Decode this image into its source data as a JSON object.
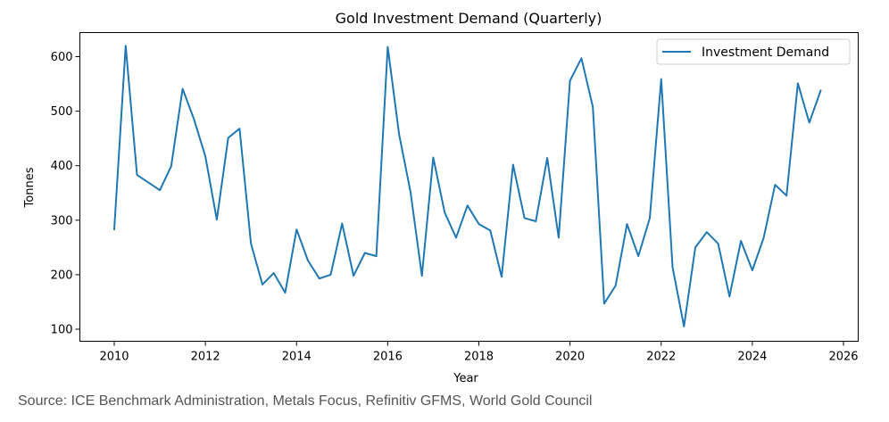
{
  "chart_data": {
    "type": "line",
    "title": "Gold Investment Demand (Quarterly)",
    "xlabel": "Year",
    "ylabel": "Tonnes",
    "xlim": [
      2009.3,
      2026.3
    ],
    "ylim": [
      77,
      645
    ],
    "xticks": [
      2010,
      2012,
      2014,
      2016,
      2018,
      2020,
      2022,
      2024,
      2026
    ],
    "yticks": [
      100,
      200,
      300,
      400,
      500,
      600
    ],
    "grid": false,
    "legend": {
      "position": "top-right",
      "entries": [
        "Investment Demand"
      ]
    },
    "series": [
      {
        "name": "Investment Demand",
        "color": "#1f77b4",
        "x": [
          2010.0,
          2010.25,
          2010.5,
          2010.75,
          2011.0,
          2011.25,
          2011.5,
          2011.75,
          2012.0,
          2012.25,
          2012.5,
          2012.75,
          2013.0,
          2013.25,
          2013.5,
          2013.75,
          2014.0,
          2014.25,
          2014.5,
          2014.75,
          2015.0,
          2015.25,
          2015.5,
          2015.75,
          2016.0,
          2016.25,
          2016.5,
          2016.75,
          2017.0,
          2017.25,
          2017.5,
          2017.75,
          2018.0,
          2018.25,
          2018.5,
          2018.75,
          2019.0,
          2019.25,
          2019.5,
          2019.75,
          2020.0,
          2020.25,
          2020.5,
          2020.75,
          2021.0,
          2021.25,
          2021.5,
          2021.75,
          2022.0,
          2022.25,
          2022.5,
          2022.75,
          2023.0,
          2023.25,
          2023.5,
          2023.75,
          2024.0,
          2024.25,
          2024.5,
          2024.75,
          2025.0,
          2025.25,
          2025.5
        ],
        "values": [
          283,
          620,
          383,
          369,
          355,
          399,
          541,
          485,
          417,
          301,
          451,
          468,
          257,
          182,
          203,
          167,
          283,
          226,
          193,
          200,
          294,
          198,
          240,
          234,
          618,
          458,
          352,
          198,
          415,
          314,
          268,
          327,
          293,
          281,
          196,
          402,
          304,
          298,
          414,
          268,
          556,
          597,
          508,
          147,
          180,
          293,
          234,
          304,
          559,
          214,
          105,
          250,
          278,
          257,
          160,
          262,
          208,
          268,
          365,
          345,
          551,
          479,
          538
        ]
      }
    ]
  },
  "footer": {
    "source": "Source: ICE Benchmark Administration, Metals Focus, Refinitiv GFMS, World Gold Council"
  }
}
